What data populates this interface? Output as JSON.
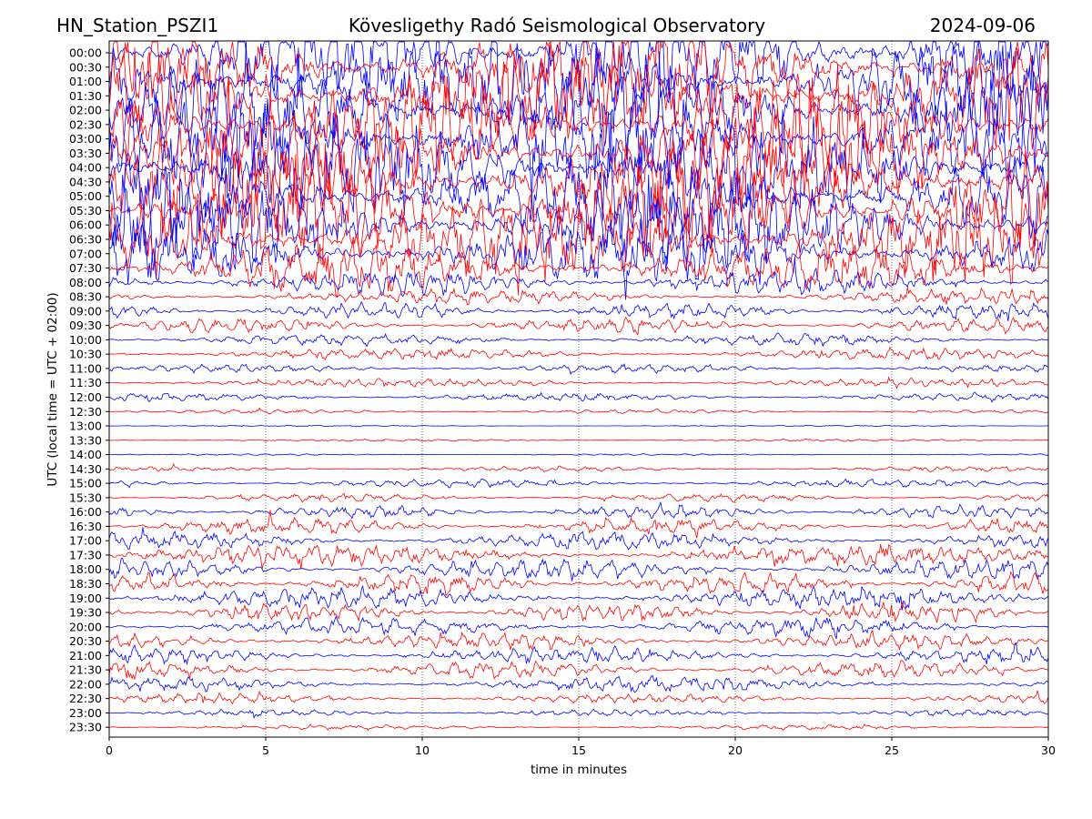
{
  "chart_data": {
    "type": "line",
    "title_left": "HN_Station_PSZI1",
    "title": "Kövesligethy Radó Seismological Observatory",
    "title_right": "2024-09-06",
    "xlabel": "time in minutes",
    "ylabel": "UTC (local time = UTC + 02:00)",
    "xlim": [
      0,
      30
    ],
    "x_ticks": [
      0,
      5,
      10,
      15,
      20,
      25,
      30
    ],
    "x_tick_labels": [
      "0",
      "5",
      "10",
      "15",
      "20",
      "25",
      "30"
    ],
    "grid": "vertical dotted lines at x ticks",
    "trace_labels": [
      "00:00",
      "00:30",
      "01:00",
      "01:30",
      "02:00",
      "02:30",
      "03:00",
      "03:30",
      "04:00",
      "04:30",
      "05:00",
      "05:30",
      "06:00",
      "06:30",
      "07:00",
      "07:30",
      "08:00",
      "08:30",
      "09:00",
      "09:30",
      "10:00",
      "10:30",
      "11:00",
      "11:30",
      "12:00",
      "12:30",
      "13:00",
      "13:30",
      "14:00",
      "14:30",
      "15:00",
      "15:30",
      "16:00",
      "16:30",
      "17:00",
      "17:30",
      "18:00",
      "18:30",
      "19:00",
      "19:30",
      "20:00",
      "20:30",
      "21:00",
      "21:30",
      "22:00",
      "22:30",
      "23:00",
      "23:30"
    ],
    "trace_amplitude_relative": [
      6.0,
      6.0,
      6.0,
      6.0,
      6.0,
      6.0,
      6.0,
      6.0,
      6.0,
      6.0,
      6.0,
      6.0,
      5.5,
      5.0,
      4.0,
      3.0,
      1.6,
      0.9,
      1.0,
      0.9,
      0.7,
      0.7,
      0.5,
      0.5,
      0.5,
      0.25,
      0.08,
      0.15,
      0.1,
      0.3,
      0.5,
      0.5,
      0.8,
      1.0,
      1.1,
      1.3,
      1.3,
      1.3,
      1.3,
      1.2,
      1.1,
      1.0,
      1.0,
      1.0,
      0.9,
      0.6,
      0.4,
      0.3
    ],
    "colors": {
      "even_trace": "#0000ff",
      "odd_trace": "#ff0000"
    }
  }
}
